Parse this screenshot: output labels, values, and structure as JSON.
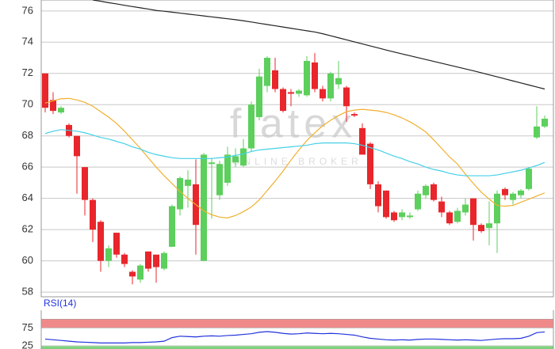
{
  "chart_data": [
    {
      "type": "candlestick",
      "watermark": "flatex",
      "watermark_sub": "ONLINE BROKER",
      "ylim": [
        57.7,
        76.7
      ],
      "yticks": [
        58,
        60,
        62,
        64,
        66,
        68,
        70,
        72,
        74,
        76
      ],
      "grid": true,
      "up_color": "#5ccf5c",
      "down_color": "#e8262b",
      "open": [
        72,
        70.3,
        69.5,
        68.7,
        68,
        66,
        63.9,
        62.5,
        60,
        61.8,
        60.4,
        59.3,
        58.8,
        60.6,
        60.4,
        59.5,
        60.9,
        63.3,
        64.8,
        64.9,
        60,
        66.2,
        64.2,
        65,
        66.3,
        66.1,
        67.2,
        69.2,
        71.2,
        72.2,
        71,
        70.8,
        70.7,
        70.6,
        72.7,
        71,
        70.4,
        71.3,
        71.1,
        69.4,
        68.5,
        67.5,
        64.9,
        64.5,
        63.1,
        62.8,
        62.8,
        63.3,
        64.2,
        64.9,
        63.8,
        63.1,
        62.5,
        63.1,
        64,
        62.3,
        62.1,
        62.4,
        64.6,
        63.9,
        64.2,
        64.6,
        67.9,
        68.6
      ],
      "high": [
        72,
        70.8,
        69.9,
        68.8,
        68,
        66,
        64,
        62.6,
        61,
        61.8,
        60.5,
        59.4,
        59.8,
        60.6,
        60.4,
        60.6,
        63.6,
        65.4,
        65.8,
        66.5,
        66.9,
        66.6,
        66.4,
        67.3,
        67.2,
        67.8,
        70.2,
        72.3,
        73.1,
        73,
        71.1,
        71,
        71,
        73.1,
        73.3,
        71.2,
        72.1,
        72.8,
        71.2,
        69.5,
        68.8,
        67.6,
        65.1,
        64.5,
        63.2,
        63.3,
        63.1,
        64.5,
        64.9,
        65,
        64.1,
        63.2,
        63.4,
        64,
        64,
        62.4,
        63.8,
        64.5,
        64.7,
        64.4,
        64.6,
        66,
        69.9,
        69.3
      ],
      "low": [
        69.5,
        69.4,
        69.4,
        67.9,
        64.3,
        62.9,
        61.2,
        59.3,
        59.6,
        60.2,
        59.6,
        58.5,
        58.6,
        59.3,
        58.6,
        59.4,
        60.9,
        62.9,
        63.4,
        60.4,
        60,
        62.7,
        63.9,
        64.8,
        66,
        66,
        67,
        69,
        70.8,
        70.8,
        69.5,
        69.9,
        70.5,
        70.5,
        70.8,
        70.2,
        70.2,
        71,
        68.9,
        69.2,
        66.8,
        64.6,
        63.1,
        62.7,
        62.5,
        62.6,
        62.7,
        63.2,
        64,
        63.8,
        62.8,
        62.3,
        62.4,
        62.9,
        61.3,
        61.8,
        61,
        60.5,
        63.9,
        63.6,
        64,
        64.5,
        67.8,
        68.5
      ],
      "close": [
        69.8,
        69.6,
        69.8,
        68,
        66.7,
        63.9,
        62,
        60,
        60.8,
        60.4,
        59.8,
        59,
        59.7,
        59.5,
        59.6,
        60.5,
        63.5,
        65.3,
        65.2,
        62.3,
        66.8,
        66.3,
        66.2,
        66.8,
        66.7,
        67.2,
        70,
        71.8,
        73,
        71,
        69.6,
        70.7,
        70.9,
        72.8,
        71,
        70.4,
        72,
        71.7,
        69.9,
        69.3,
        66.8,
        64.9,
        63.5,
        62.8,
        62.6,
        63.1,
        62.9,
        64.3,
        64.8,
        63.9,
        63.1,
        62.4,
        63.2,
        63.6,
        62.3,
        61.9,
        62.4,
        64.3,
        64.2,
        64.3,
        64.5,
        65.9,
        68.6,
        69.1
      ],
      "series": [
        {
          "color": "#222222",
          "values": [
            null,
            null,
            null,
            null,
            null,
            null,
            76.7,
            76.62,
            76.53,
            76.45,
            76.36,
            76.28,
            76.2,
            76.12,
            76.03,
            75.98,
            75.92,
            75.86,
            75.8,
            75.74,
            75.68,
            75.62,
            75.56,
            75.5,
            75.44,
            75.37,
            75.29,
            75.21,
            75.13,
            75.05,
            74.97,
            74.89,
            74.81,
            74.73,
            74.65,
            74.54,
            74.41,
            74.28,
            74.15,
            74.02,
            73.89,
            73.76,
            73.63,
            73.5,
            73.37,
            73.25,
            73.13,
            73.01,
            72.89,
            72.77,
            72.65,
            72.53,
            72.41,
            72.29,
            72.17,
            72.04,
            71.91,
            71.78,
            71.65,
            71.52,
            71.39,
            71.26,
            71.13,
            71
          ]
        },
        {
          "color": "#f0b030",
          "values": [
            70.1,
            70.25,
            70.38,
            70.4,
            70.3,
            70.15,
            69.9,
            69.55,
            69.2,
            68.8,
            68.3,
            67.75,
            67.2,
            66.6,
            66,
            65.45,
            64.95,
            64.45,
            64,
            63.6,
            63.2,
            62.95,
            62.8,
            62.75,
            62.9,
            63.15,
            63.45,
            63.9,
            64.5,
            65.1,
            65.75,
            66.45,
            67.1,
            67.7,
            68.2,
            68.65,
            69,
            69.3,
            69.55,
            69.65,
            69.7,
            69.65,
            69.6,
            69.5,
            69.35,
            69.15,
            68.9,
            68.6,
            68.25,
            67.75,
            67.2,
            66.65,
            66.2,
            65.55,
            64.95,
            64.4,
            63.95,
            63.55,
            63.5,
            63.55,
            63.75,
            63.95,
            64.15,
            64.35
          ]
        },
        {
          "color": "#45d0e8",
          "values": [
            68.15,
            68.3,
            68.4,
            68.35,
            68.3,
            68.2,
            68.05,
            67.9,
            67.8,
            67.65,
            67.5,
            67.3,
            67.15,
            66.95,
            66.8,
            66.7,
            66.6,
            66.55,
            66.55,
            66.55,
            66.55,
            66.55,
            66.6,
            66.65,
            66.75,
            66.85,
            67,
            67.1,
            67.15,
            67.2,
            67.25,
            67.3,
            67.35,
            67.4,
            67.5,
            67.55,
            67.55,
            67.55,
            67.55,
            67.5,
            67.4,
            67.25,
            67.1,
            66.9,
            66.7,
            66.55,
            66.35,
            66.2,
            66,
            65.85,
            65.75,
            65.6,
            65.5,
            65.45,
            65.45,
            65.45,
            65.45,
            65.5,
            65.6,
            65.7,
            65.8,
            65.95,
            66.1,
            66.3
          ]
        }
      ]
    },
    {
      "type": "line",
      "title": "RSI(14)",
      "ylim": [
        16,
        125
      ],
      "yticks": [
        75,
        25
      ],
      "bands": [
        {
          "from": 75,
          "to": 100,
          "color": "#f08a8a"
        },
        {
          "from": 0,
          "to": 25,
          "color": "#7cd67c"
        }
      ],
      "series": [
        {
          "color": "#2233dd",
          "values": [
            44,
            42,
            40,
            38,
            36,
            35,
            34,
            33,
            33,
            33,
            33,
            34,
            34,
            35,
            36,
            38,
            48,
            52,
            51,
            50,
            52,
            53,
            52,
            54,
            55,
            57,
            59,
            63,
            65,
            63,
            60,
            58,
            59,
            61,
            60,
            59,
            60,
            59,
            57,
            55,
            50,
            46,
            44,
            42,
            41,
            42,
            41,
            43,
            44,
            44,
            43,
            42,
            41,
            42,
            41,
            40,
            42,
            44,
            45,
            45,
            46,
            52,
            62,
            64
          ]
        }
      ]
    }
  ]
}
